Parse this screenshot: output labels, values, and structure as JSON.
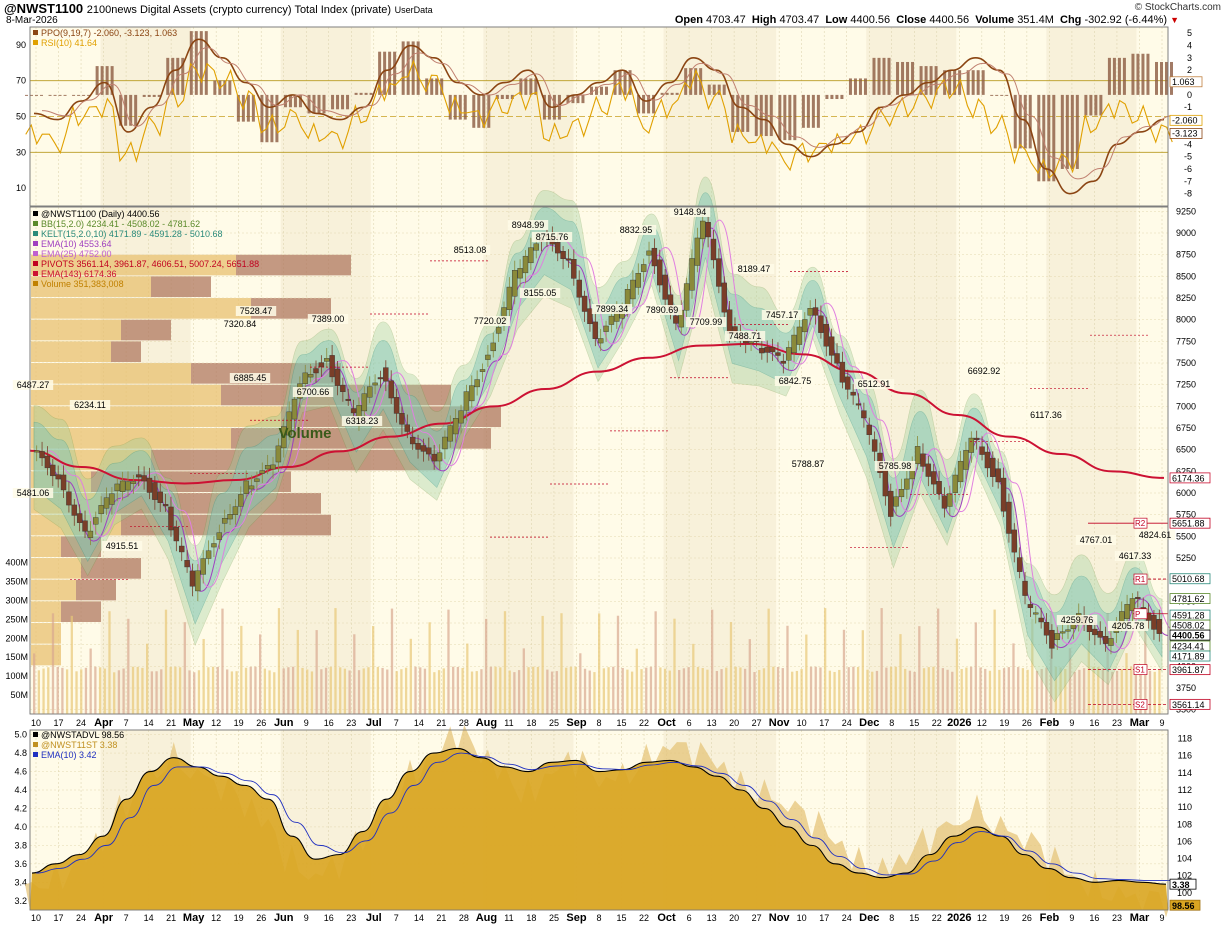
{
  "header": {
    "symbol": "@NWST1100",
    "description": "2100news Digital Assets (crypto currency) Total Index (private)",
    "userdata": "UserData",
    "date": "8-Mar-2026",
    "brand": "© StockCharts.com",
    "ohlc": {
      "open_label": "Open",
      "open": "4703.47",
      "high_label": "High",
      "high": "4703.47",
      "low_label": "Low",
      "low": "4400.56",
      "close_label": "Close",
      "close": "4400.56",
      "volume_label": "Volume",
      "volume": "351.4M",
      "chg_label": "Chg",
      "chg": "-302.92 (-6.44%)"
    }
  },
  "colors": {
    "bg_light": "#fffbe8",
    "bg_stripe": "#f5ecd4",
    "candle_up": "#8a8a3a",
    "candle_down": "#7a3e28",
    "ema143": "#cc1133",
    "bb_fill": "#9ccf9c",
    "kelt_fill": "#7ec4b8",
    "ppo": "#8b4513",
    "rsi": "#e0a000",
    "adl": "#d9a521",
    "ema10": "#2030c0",
    "vbp_up": "#e8c070",
    "vbp_down": "#b07860"
  },
  "x_axis_labels": [
    "10",
    "17",
    "24",
    "Apr",
    "7",
    "14",
    "21",
    "May",
    "12",
    "19",
    "26",
    "Jun",
    "9",
    "16",
    "23",
    "Jul",
    "7",
    "14",
    "21",
    "28",
    "Aug",
    "11",
    "18",
    "25",
    "Sep",
    "8",
    "15",
    "22",
    "Oct",
    "6",
    "13",
    "20",
    "27",
    "Nov",
    "10",
    "17",
    "24",
    "Dec",
    "8",
    "15",
    "22",
    "2026",
    "12",
    "19",
    "26",
    "Feb",
    "9",
    "16",
    "23",
    "Mar",
    "9"
  ],
  "x_axis_bold": [
    "Apr",
    "May",
    "Jun",
    "Jul",
    "Aug",
    "Sep",
    "Oct",
    "Nov",
    "Dec",
    "2026",
    "Feb",
    "Mar"
  ],
  "top_panel": {
    "legend": [
      {
        "text": "PPO(9,19,7) -2.060, -3.123, 1.063",
        "color": "#8b4513"
      },
      {
        "text": "RSI(10) 41.64",
        "color": "#e0a000"
      }
    ],
    "left_ticks": [
      "90",
      "70",
      "50",
      "30",
      "10"
    ],
    "right_ticks": [
      "5",
      "4",
      "3",
      "2",
      "1",
      "0",
      "-1",
      "-2",
      "-3",
      "-4",
      "-5",
      "-6",
      "-7",
      "-8"
    ],
    "right_labels": [
      "1.063",
      "-2.060",
      "-3.123"
    ]
  },
  "price_panel": {
    "legend": [
      {
        "text": "@NWST1100 (Daily) 4400.56",
        "color": "#000"
      },
      {
        "text": "BB(15,2.0) 4234.41 - 4508.02 - 4781.62",
        "color": "#5a8a2a"
      },
      {
        "text": "KELT(15,2.0,10) 4171.89 - 4591.28 - 5010.68",
        "color": "#2a8a7a"
      },
      {
        "text": "EMA(10) 4553.64",
        "color": "#a040c0"
      },
      {
        "text": "EMA(25) 4752.00",
        "color": "#c060d0"
      },
      {
        "text": "PIVOTS 3561.14, 3961.87, 4606.51, 5007.24, 5651.88",
        "color": "#c00020"
      },
      {
        "text": "EMA(143) 6174.36",
        "color": "#cc1133"
      },
      {
        "text": "Volume 351,383,008",
        "color": "#c08000"
      }
    ],
    "right_ticks": [
      "9250",
      "9000",
      "8750",
      "8500",
      "8250",
      "8000",
      "7750",
      "7500",
      "7250",
      "7000",
      "6750",
      "6500",
      "6250",
      "6000",
      "5750",
      "5500",
      "5250",
      "5000",
      "4750",
      "4500",
      "4250",
      "4000",
      "3750",
      "3500"
    ],
    "volume_ticks": [
      "400M",
      "350M",
      "300M",
      "250M",
      "200M",
      "150M",
      "100M",
      "50M"
    ],
    "volume_label": "Volume",
    "annotations": [
      "6487.27",
      "6234.11",
      "5481.06",
      "4915.51",
      "7320.84",
      "7528.47",
      "6885.45",
      "7389.00",
      "6700.66",
      "6318.23",
      "8513.08",
      "8948.99",
      "8715.76",
      "7720.02",
      "8155.05",
      "8832.95",
      "7899.34",
      "9148.94",
      "7890.69",
      "7709.99",
      "7488.71",
      "8189.47",
      "7457.17",
      "6842.75",
      "5788.87",
      "6512.91",
      "5785.98",
      "6692.92",
      "6117.36",
      "4767.01",
      "4617.33",
      "4824.61",
      "4259.76",
      "4205.78"
    ],
    "right_value_labels": {
      "ema143": "6174.36",
      "r2": "5651.88",
      "kelt_upper": "5010.68",
      "r1": "R1",
      "bb_upper": "4781.62",
      "kelt_mid": "4591.28",
      "bb_mid": "4508.02",
      "close": "4400.56",
      "bb_lower": "4234.41",
      "kelt_lower": "4171.89",
      "s1": "3961.87",
      "s2": "3561.14",
      "r2_tag": "R2",
      "s1_tag": "S1",
      "s2_tag": "S2",
      "p_tag": "P"
    }
  },
  "bottom_panel": {
    "legend": [
      {
        "text": "@NWSTADVL 98.56",
        "color": "#000"
      },
      {
        "text": "@NWST11ST 3.38",
        "color": "#c09020"
      },
      {
        "text": "EMA(10) 3.42",
        "color": "#2030c0"
      }
    ],
    "left_ticks": [
      "5.0",
      "4.8",
      "4.6",
      "4.4",
      "4.2",
      "4.0",
      "3.8",
      "3.6",
      "3.4",
      "3.2"
    ],
    "right_ticks": [
      "118",
      "116",
      "114",
      "112",
      "110",
      "108",
      "106",
      "104",
      "102",
      "100"
    ],
    "right_labels": [
      "3.38",
      "98.56"
    ]
  },
  "chart_data": [
    {
      "type": "candlestick",
      "title": "@NWST1100 (Daily) 4400.56",
      "ylim": [
        3450,
        9300
      ],
      "x_range": [
        "2025-03-10",
        "2026-03-09"
      ],
      "close_path_sample": [
        6487,
        6200,
        5500,
        6000,
        6234,
        5800,
        4915,
        5600,
        6100,
        6300,
        7320,
        7528,
        6885,
        7389,
        6700,
        6318,
        7000,
        7600,
        8513,
        8948,
        8715,
        7720,
        8155,
        8832,
        7899,
        9148,
        7890,
        7709,
        7488,
        8189,
        7457,
        6842,
        5788,
        6512,
        5785,
        6692,
        6117,
        4767,
        4259,
        4617,
        4205,
        4824,
        4400
      ],
      "ema143": [
        6487,
        6300,
        6150,
        6110,
        6150,
        6300,
        6480,
        6650,
        6800,
        7000,
        7200,
        7400,
        7560,
        7700,
        7720,
        7600,
        7400,
        7150,
        6900,
        6650,
        6450,
        6250,
        6174
      ],
      "pivots": {
        "S2": 3561.14,
        "S1": 3961.87,
        "P": 4606.51,
        "R1": 5007.24,
        "R2": 5651.88
      },
      "bb": {
        "lower": 4234.41,
        "mid": 4508.02,
        "upper": 4781.62
      },
      "kelt": {
        "lower": 4171.89,
        "mid": 4591.28,
        "upper": 5010.68
      },
      "ema10": 4553.64,
      "ema25": 4752.0,
      "volume_last": 351383008,
      "volume_ylim": [
        0,
        420000000
      ]
    },
    {
      "type": "line",
      "title": "PPO(9,19,7) / RSI(10)",
      "series": [
        {
          "name": "PPO(9,19,7)",
          "values": [
            -1.5,
            -2,
            -0.5,
            1,
            -3,
            -1,
            2,
            4.5,
            3,
            1,
            -1,
            0,
            -1.5,
            -2,
            -1,
            2,
            4,
            3,
            1,
            0,
            1,
            2,
            -1,
            0,
            1,
            2,
            -0.5,
            1,
            3,
            2,
            -1,
            -2,
            -4,
            -5,
            -4,
            -3,
            -1,
            0,
            1,
            2,
            3,
            2,
            -2,
            -6,
            -8,
            -7,
            -4,
            -3,
            -2
          ]
        },
        {
          "name": "RSI(10)",
          "values": [
            40,
            35,
            50,
            55,
            30,
            45,
            60,
            75,
            70,
            60,
            45,
            50,
            40,
            38,
            50,
            65,
            75,
            70,
            55,
            50,
            55,
            60,
            40,
            45,
            55,
            65,
            45,
            55,
            70,
            60,
            40,
            35,
            25,
            30,
            35,
            40,
            50,
            55,
            60,
            65,
            55,
            45,
            30,
            20,
            25,
            45,
            55,
            50,
            41.64
          ]
        }
      ],
      "left_ylim": [
        0,
        100
      ],
      "right_ylim": [
        -9,
        5.5
      ]
    },
    {
      "type": "area",
      "title": "@NWSTADVL / @NWST11ST",
      "series": [
        {
          "name": "@NWSTADVL",
          "values": [
            101,
            102,
            104,
            106,
            110,
            114,
            116,
            114,
            112,
            110,
            108,
            104,
            102,
            103,
            106,
            110,
            114,
            116,
            118,
            116,
            114,
            112,
            114,
            115,
            113,
            114,
            116,
            117,
            116,
            115,
            113,
            112,
            110,
            108,
            106,
            104,
            103,
            104,
            106,
            108,
            110,
            108,
            106,
            104,
            102,
            101,
            100,
            99,
            98.56
          ]
        },
        {
          "name": "@NWST11ST",
          "values": [
            3.5,
            3.6,
            3.7,
            3.9,
            4.3,
            4.6,
            4.75,
            4.65,
            4.55,
            4.45,
            4.3,
            3.9,
            3.65,
            3.7,
            3.95,
            4.3,
            4.6,
            4.8,
            4.85,
            4.75,
            4.65,
            4.6,
            4.7,
            4.72,
            4.6,
            4.62,
            4.7,
            4.72,
            4.65,
            4.55,
            4.4,
            4.2,
            4.0,
            3.8,
            3.6,
            3.5,
            3.45,
            3.5,
            3.7,
            3.9,
            4.0,
            3.9,
            3.7,
            3.55,
            3.45,
            3.4,
            3.42,
            3.4,
            3.38
          ]
        },
        {
          "name": "EMA(10)",
          "values": [
            3.5,
            3.55,
            3.65,
            3.8,
            4.1,
            4.45,
            4.65,
            4.65,
            4.58,
            4.5,
            4.35,
            4.05,
            3.8,
            3.72,
            3.85,
            4.15,
            4.45,
            4.7,
            4.8,
            4.76,
            4.68,
            4.62,
            4.66,
            4.68,
            4.63,
            4.62,
            4.67,
            4.7,
            4.66,
            4.58,
            4.45,
            4.28,
            4.08,
            3.88,
            3.68,
            3.55,
            3.48,
            3.49,
            3.63,
            3.83,
            3.95,
            3.9,
            3.74,
            3.6,
            3.5,
            3.44,
            3.43,
            3.42,
            3.42
          ]
        }
      ],
      "left_ylim": [
        3.1,
        5.05
      ],
      "right_ylim": [
        98,
        119
      ]
    }
  ]
}
